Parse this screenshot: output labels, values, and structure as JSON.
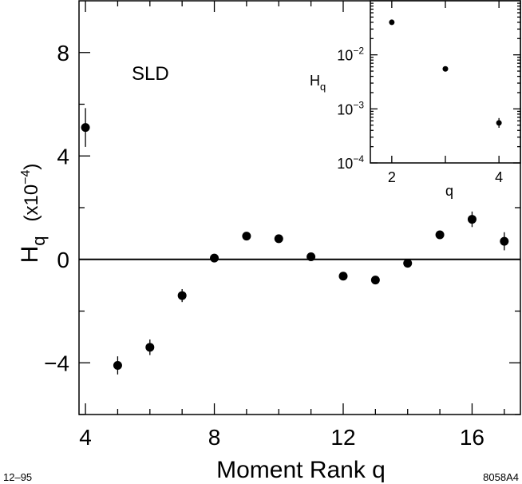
{
  "chart_data": [
    {
      "type": "scatter",
      "title": "",
      "annotation": "SLD",
      "xlabel": "Moment Rank  q",
      "ylabel_main": "H",
      "ylabel_sub": "q",
      "ylabel_scale": "(x10",
      "ylabel_exp": "−4",
      "ylabel_close": ")",
      "xlim": [
        3.8,
        17.5
      ],
      "ylim": [
        -6,
        10
      ],
      "xticks": [
        4,
        8,
        12,
        16
      ],
      "xtick_labels": [
        "4",
        "8",
        "12",
        "16"
      ],
      "yticks": [
        -4,
        0,
        4,
        8
      ],
      "ytick_labels": [
        "−4",
        "0",
        "4",
        "8"
      ],
      "x_minor_ticks": [
        5,
        6,
        7,
        9,
        10,
        11,
        13,
        14,
        15,
        17
      ],
      "y_minor_ticks": [
        -6,
        -2,
        2,
        6
      ],
      "zero_line": true,
      "series": [
        {
          "x": [
            4,
            5,
            6,
            7,
            8,
            9,
            10,
            11,
            12,
            13,
            14,
            15,
            16,
            17
          ],
          "y": [
            5.1,
            -4.1,
            -3.4,
            -1.4,
            0.05,
            0.9,
            0.8,
            0.1,
            -0.65,
            -0.8,
            -0.15,
            0.95,
            1.55,
            0.7
          ],
          "yerr": [
            0.75,
            0.35,
            0.3,
            0.25,
            0.1,
            0.1,
            0.1,
            0.15,
            0.15,
            0.15,
            0.1,
            0.15,
            0.3,
            0.35
          ]
        }
      ]
    },
    {
      "type": "scatter",
      "title": "",
      "xlabel": "q",
      "ylabel_main": "H",
      "ylabel_sub": "q",
      "xlim": [
        1.6,
        4.4
      ],
      "ylim": [
        0.0001,
        0.1
      ],
      "log_y": true,
      "xticks": [
        2,
        3,
        4
      ],
      "xtick_labels": [
        "2",
        "",
        "4"
      ],
      "yticks": [
        0.0001,
        0.001,
        0.01
      ],
      "ytick_label_base": "10",
      "ytick_label_exps": [
        "−4",
        "−3",
        "−2"
      ],
      "series": [
        {
          "x": [
            2,
            3,
            4
          ],
          "y": [
            0.04,
            0.0055,
            0.00055
          ],
          "yerr_log": [
            0,
            0,
            0.09
          ]
        }
      ]
    }
  ],
  "footer": {
    "left": "12–95",
    "right": "8058A4"
  }
}
